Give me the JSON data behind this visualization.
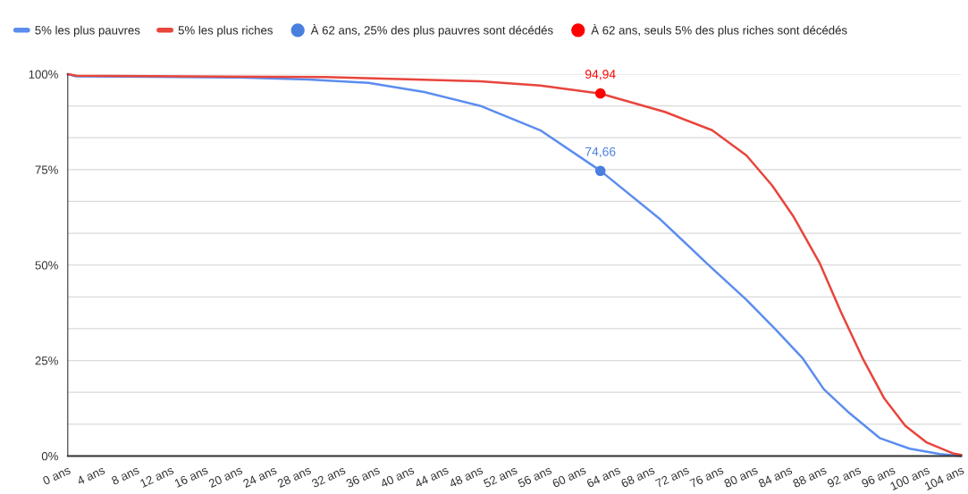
{
  "chart_data": {
    "type": "line",
    "series": [
      {
        "name": "5% les plus pauvres",
        "color": "#5b8def",
        "x": [
          0,
          1,
          10,
          20,
          28,
          35,
          41.5,
          48,
          55,
          62,
          69,
          74.5,
          79,
          82.5,
          85.5,
          88,
          91,
          94.5,
          98,
          101.5,
          104
        ],
        "values": [
          100,
          99.4,
          99.3,
          99.1,
          98.6,
          97.7,
          95.3,
          91.7,
          85.3,
          74.7,
          61.9,
          50.2,
          40.9,
          32.9,
          25.7,
          17.5,
          11.2,
          4.7,
          1.9,
          0.5,
          0
        ]
      },
      {
        "name": "5% les plus riches",
        "color": "#e8453c",
        "x": [
          0,
          1,
          30,
          48,
          55,
          62,
          69.5,
          75,
          79,
          82,
          84.5,
          87.5,
          90,
          92.5,
          95,
          97.5,
          100,
          103,
          104
        ],
        "values": [
          100,
          99.6,
          99.2,
          98.1,
          97.0,
          94.9,
          90.1,
          85.3,
          78.7,
          70.8,
          62.6,
          50.6,
          37.7,
          25.7,
          15.2,
          7.9,
          3.5,
          0.7,
          0.3
        ]
      },
      {
        "type": "scatter",
        "name": "À 62 ans, 25% des plus pauvres sont décédés",
        "color": "#4a7fe0",
        "marker": "circle",
        "x": [
          62
        ],
        "values": [
          74.66
        ],
        "value_labels": [
          "74,66"
        ]
      },
      {
        "type": "scatter",
        "name": "À 62 ans, seuls 5% des plus riches sont décédés",
        "color": "#ff0000",
        "marker": "circle",
        "x": [
          62
        ],
        "values": [
          94.94
        ],
        "value_labels": [
          "94,94"
        ]
      }
    ],
    "xlim": [
      0,
      104
    ],
    "xticks": [
      {
        "value": 0,
        "label": "0 ans"
      },
      {
        "value": 4,
        "label": "4 ans"
      },
      {
        "value": 8,
        "label": "8 ans"
      },
      {
        "value": 12,
        "label": "12 ans"
      },
      {
        "value": 16,
        "label": "16 ans"
      },
      {
        "value": 20,
        "label": "20 ans"
      },
      {
        "value": 24,
        "label": "24 ans"
      },
      {
        "value": 28,
        "label": "28 ans"
      },
      {
        "value": 32,
        "label": "32 ans"
      },
      {
        "value": 36,
        "label": "36 ans"
      },
      {
        "value": 40,
        "label": "40 ans"
      },
      {
        "value": 44,
        "label": "44 ans"
      },
      {
        "value": 48,
        "label": "48 ans"
      },
      {
        "value": 52,
        "label": "52 ans"
      },
      {
        "value": 56,
        "label": "56 ans"
      },
      {
        "value": 60,
        "label": "60 ans"
      },
      {
        "value": 64,
        "label": "64 ans"
      },
      {
        "value": 68,
        "label": "68 ans"
      },
      {
        "value": 72,
        "label": "72 ans"
      },
      {
        "value": 76,
        "label": "76 ans"
      },
      {
        "value": 80,
        "label": "80 ans"
      },
      {
        "value": 84,
        "label": "84 ans"
      },
      {
        "value": 88,
        "label": "88 ans"
      },
      {
        "value": 92,
        "label": "92 ans"
      },
      {
        "value": 96,
        "label": "96 ans"
      },
      {
        "value": 100,
        "label": "100 ans"
      },
      {
        "value": 104,
        "label": "104 ans"
      }
    ],
    "ylim": [
      0,
      100
    ],
    "yticks": [
      {
        "value": 0,
        "label": "0%"
      },
      {
        "value": 8.333,
        "label": null
      },
      {
        "value": 16.667,
        "label": null
      },
      {
        "value": 25,
        "label": "25%"
      },
      {
        "value": 33.333,
        "label": null
      },
      {
        "value": 41.667,
        "label": null
      },
      {
        "value": 50,
        "label": "50%"
      },
      {
        "value": 58.333,
        "label": null
      },
      {
        "value": 66.667,
        "label": null
      },
      {
        "value": 75,
        "label": "75%"
      },
      {
        "value": 83.333,
        "label": null
      },
      {
        "value": 91.667,
        "label": null
      },
      {
        "value": 100,
        "label": "100%"
      }
    ],
    "grid": "y",
    "legend": "top",
    "line_style": "solid"
  }
}
